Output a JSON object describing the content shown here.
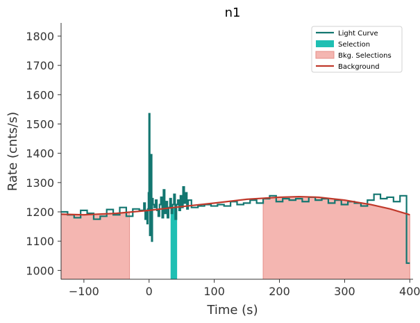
{
  "chart_data": {
    "type": "line",
    "title": "n1",
    "xlabel": "Time (s)",
    "ylabel": "Rate (cnts/s)",
    "xlim": [
      -135,
      405
    ],
    "ylim": [
      970,
      1845
    ],
    "xticks": [
      -100,
      0,
      100,
      200,
      300,
      400
    ],
    "xtick_labels": [
      "−100",
      "0",
      "100",
      "200",
      "300",
      "400"
    ],
    "yticks": [
      1000,
      1100,
      1200,
      1300,
      1400,
      1500,
      1600,
      1700,
      1800
    ],
    "ytick_labels": [
      "1000",
      "1100",
      "1200",
      "1300",
      "1400",
      "1500",
      "1600",
      "1700",
      "1800"
    ],
    "grid": false,
    "legend": {
      "position": "top-right",
      "entries": [
        "Light Curve",
        "Selection",
        "Bkg. Selections",
        "Background"
      ]
    },
    "colors": {
      "light_curve": "#137670",
      "selection": "#1fbfb3",
      "bkg_selection": "#f4b6b1",
      "bkg_selection_edge": "#e58f88",
      "background": "#c0392b"
    },
    "series": [
      {
        "name": "Light Curve",
        "type": "step",
        "x": [
          -135,
          -125,
          -115,
          -105,
          -95,
          -85,
          -75,
          -65,
          -55,
          -45,
          -35,
          -25,
          -15,
          -8,
          -6,
          -4,
          -3,
          -2,
          -1,
          0,
          1,
          2,
          3,
          4,
          5,
          6,
          8,
          10,
          12,
          14,
          16,
          18,
          20,
          22,
          24,
          26,
          28,
          30,
          32,
          34,
          36,
          38,
          40,
          42,
          44,
          46,
          48,
          50,
          52,
          54,
          56,
          58,
          60,
          65,
          75,
          85,
          95,
          105,
          115,
          125,
          135,
          145,
          155,
          165,
          175,
          185,
          195,
          205,
          215,
          225,
          235,
          245,
          255,
          265,
          275,
          285,
          295,
          305,
          315,
          325,
          335,
          345,
          355,
          365,
          375,
          385,
          395,
          400
        ],
        "y": [
          1200,
          1190,
          1180,
          1205,
          1195,
          1175,
          1185,
          1208,
          1190,
          1215,
          1185,
          1210,
          1205,
          1230,
          1175,
          1205,
          1160,
          1210,
          1265,
          1535,
          1120,
          1210,
          1395,
          1100,
          1245,
          1225,
          1215,
          1240,
          1205,
          1185,
          1225,
          1250,
          1180,
          1275,
          1195,
          1235,
          1180,
          1215,
          1245,
          1195,
          1225,
          1260,
          1175,
          1225,
          1240,
          1205,
          1255,
          1215,
          1285,
          1230,
          1265,
          1210,
          1240,
          1215,
          1220,
          1225,
          1220,
          1225,
          1220,
          1235,
          1225,
          1230,
          1240,
          1230,
          1245,
          1255,
          1235,
          1245,
          1240,
          1245,
          1235,
          1250,
          1240,
          1245,
          1230,
          1240,
          1225,
          1235,
          1230,
          1220,
          1240,
          1260,
          1245,
          1250,
          1235,
          1255,
          1025,
          1025
        ]
      },
      {
        "name": "Background",
        "type": "line",
        "x": [
          -135,
          -100,
          -50,
          0,
          50,
          100,
          150,
          200,
          230,
          260,
          300,
          340,
          370,
          400
        ],
        "y": [
          1192,
          1190,
          1195,
          1205,
          1218,
          1230,
          1243,
          1250,
          1252,
          1250,
          1240,
          1225,
          1210,
          1190
        ]
      }
    ],
    "selections": [
      {
        "name": "Selection",
        "x": [
          33,
          43
        ]
      }
    ],
    "bkg_selections": [
      {
        "name": "Bkg. Selections",
        "x": [
          -135,
          -30
        ]
      },
      {
        "name": "Bkg. Selections",
        "x": [
          175,
          400
        ]
      }
    ]
  }
}
